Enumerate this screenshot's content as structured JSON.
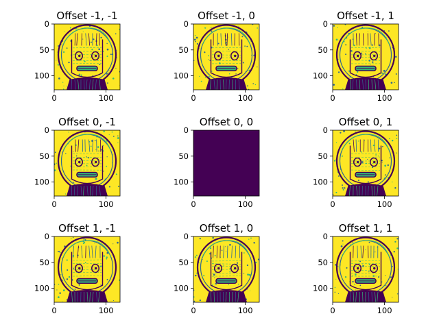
{
  "figure": {
    "grid_rows": 3,
    "grid_cols": 3
  },
  "colormap": {
    "name": "viridis",
    "low": "#440154",
    "dark": "#31688e",
    "mid": "#35b779",
    "high": "#fde725"
  },
  "chart_data": [
    {
      "type": "heatmap",
      "title": "Offset -1, -1",
      "x_ticks": [
        0,
        100
      ],
      "y_ticks": [
        0,
        50,
        100
      ],
      "xlim": [
        0,
        127
      ],
      "ylim": [
        127,
        0
      ],
      "pattern": "edge-map",
      "uniform_value": null
    },
    {
      "type": "heatmap",
      "title": "Offset -1, 0",
      "x_ticks": [
        0,
        100
      ],
      "y_ticks": [
        0,
        50,
        100
      ],
      "xlim": [
        0,
        127
      ],
      "ylim": [
        127,
        0
      ],
      "pattern": "edge-map",
      "uniform_value": null
    },
    {
      "type": "heatmap",
      "title": "Offset -1, 1",
      "x_ticks": [
        0,
        100
      ],
      "y_ticks": [
        0,
        50,
        100
      ],
      "xlim": [
        0,
        127
      ],
      "ylim": [
        127,
        0
      ],
      "pattern": "edge-map",
      "uniform_value": null
    },
    {
      "type": "heatmap",
      "title": "Offset 0, -1",
      "x_ticks": [
        0,
        100
      ],
      "y_ticks": [
        0,
        50,
        100
      ],
      "xlim": [
        0,
        127
      ],
      "ylim": [
        127,
        0
      ],
      "pattern": "edge-map",
      "uniform_value": null
    },
    {
      "type": "heatmap",
      "title": "Offset 0, 0",
      "x_ticks": [
        0,
        100
      ],
      "y_ticks": [
        0,
        50,
        100
      ],
      "xlim": [
        0,
        127
      ],
      "ylim": [
        127,
        0
      ],
      "pattern": "uniform",
      "uniform_value": "low"
    },
    {
      "type": "heatmap",
      "title": "Offset 0, 1",
      "x_ticks": [
        0,
        100
      ],
      "y_ticks": [
        0,
        50,
        100
      ],
      "xlim": [
        0,
        127
      ],
      "ylim": [
        127,
        0
      ],
      "pattern": "edge-map",
      "uniform_value": null
    },
    {
      "type": "heatmap",
      "title": "Offset 1, -1",
      "x_ticks": [
        0,
        100
      ],
      "y_ticks": [
        0,
        50,
        100
      ],
      "xlim": [
        0,
        127
      ],
      "ylim": [
        127,
        0
      ],
      "pattern": "edge-map",
      "uniform_value": null
    },
    {
      "type": "heatmap",
      "title": "Offset 1, 0",
      "x_ticks": [
        0,
        100
      ],
      "y_ticks": [
        0,
        50,
        100
      ],
      "xlim": [
        0,
        127
      ],
      "ylim": [
        127,
        0
      ],
      "pattern": "edge-map",
      "uniform_value": null
    },
    {
      "type": "heatmap",
      "title": "Offset 1, 1",
      "x_ticks": [
        0,
        100
      ],
      "y_ticks": [
        0,
        50,
        100
      ],
      "xlim": [
        0,
        127
      ],
      "ylim": [
        127,
        0
      ],
      "pattern": "edge-map",
      "uniform_value": null
    }
  ]
}
